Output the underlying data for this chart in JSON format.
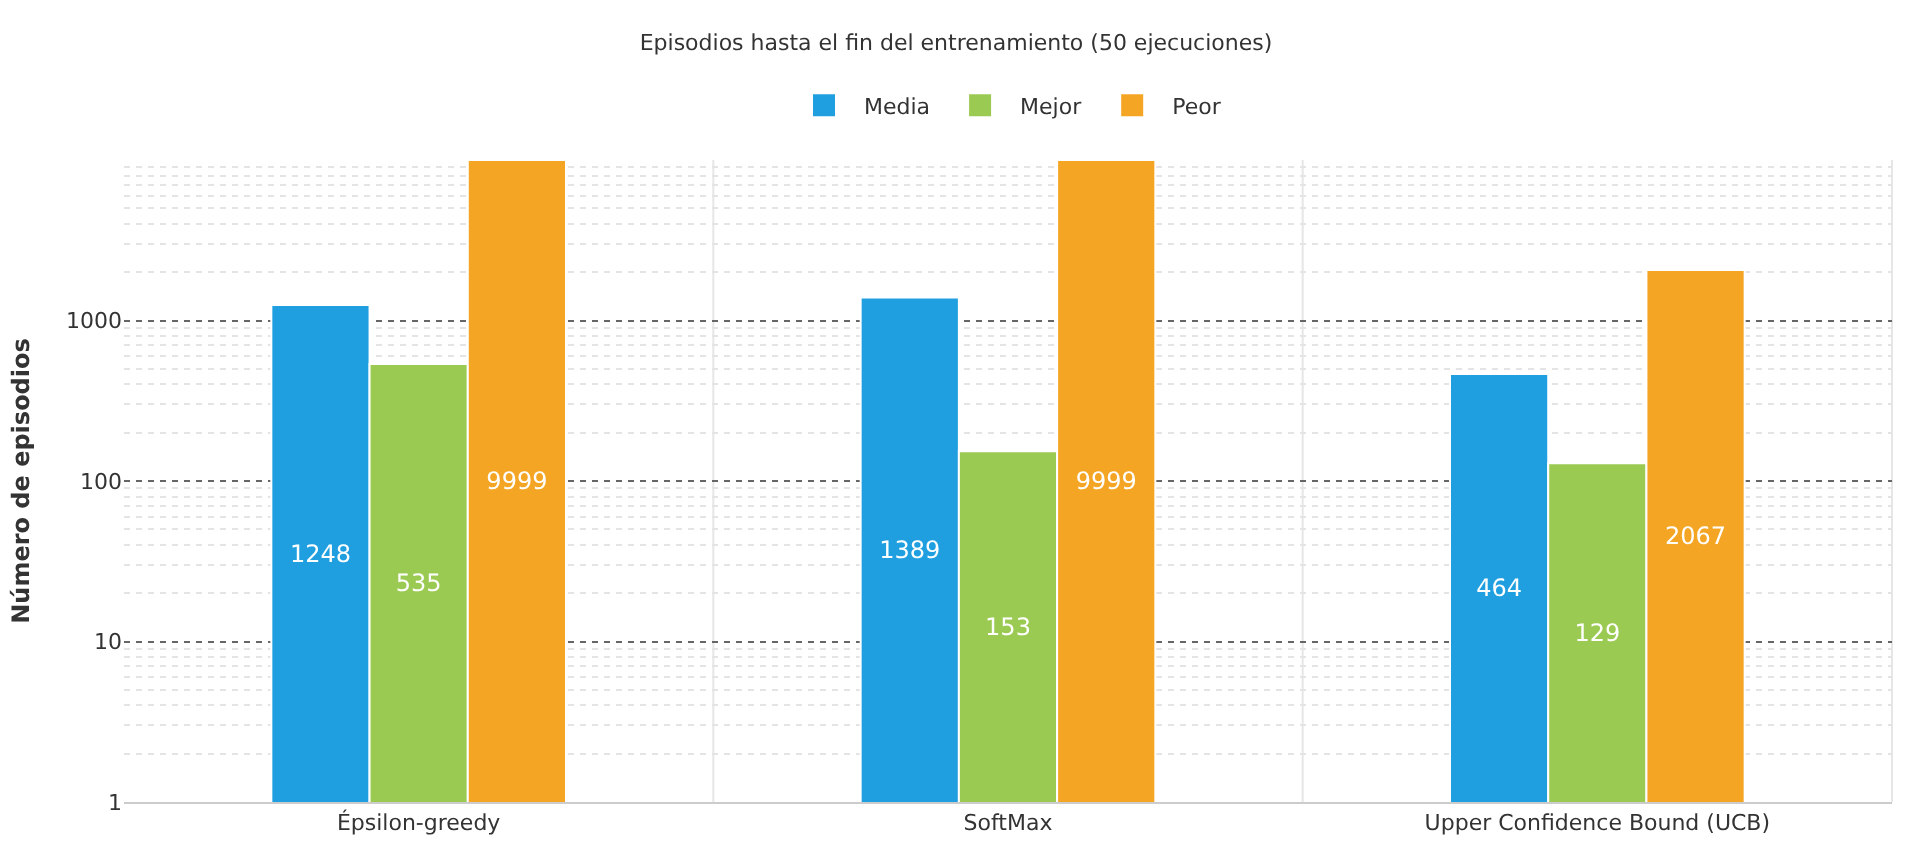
{
  "chart_data": {
    "type": "bar",
    "title": "Episodios hasta el fin del entrenamiento (50 ejecuciones)",
    "ylabel": "Número de episodios",
    "categories": [
      "Épsilon-greedy",
      "SoftMax",
      "Upper Confidence Bound (UCB)"
    ],
    "series": [
      {
        "name": "Media",
        "color": "#1f9fdf",
        "values": [
          1248,
          1389,
          464
        ]
      },
      {
        "name": "Mejor",
        "color": "#9bca52",
        "values": [
          535,
          153,
          129
        ]
      },
      {
        "name": "Peor",
        "color": "#f5a524",
        "values": [
          9999,
          9999,
          2067
        ]
      }
    ],
    "log": true,
    "ylim": [
      1,
      10000
    ],
    "yticks": [
      1,
      10,
      100,
      1000
    ],
    "grid": true,
    "legend": "top",
    "data_labels": true
  }
}
